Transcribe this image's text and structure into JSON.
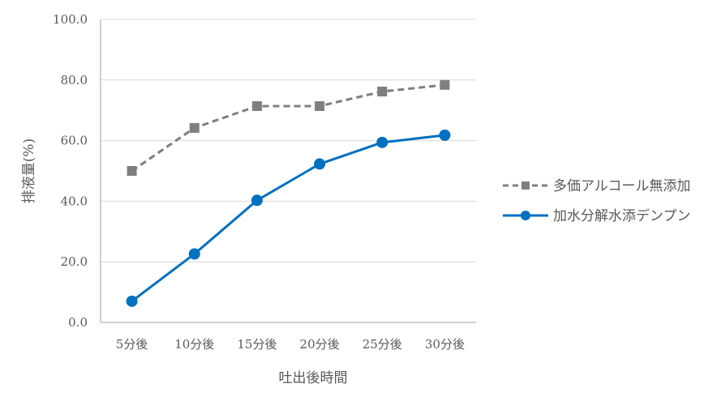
{
  "chart_data": {
    "type": "line",
    "title": "",
    "xlabel": "吐出後時間",
    "ylabel": "排液量(%)",
    "categories": [
      "5分後",
      "10分後",
      "15分後",
      "20分後",
      "25分後",
      "30分後"
    ],
    "ylim": [
      0,
      100
    ],
    "yticks": [
      "0.0",
      "20.0",
      "40.0",
      "60.0",
      "80.0",
      "100.0"
    ],
    "ytick_values": [
      0,
      20,
      40,
      60,
      80,
      100
    ],
    "grid": true,
    "legend_position": "right",
    "series": [
      {
        "name": "多価アルコール無添加",
        "values": [
          50.0,
          64.2,
          71.4,
          71.4,
          76.2,
          78.4
        ],
        "color": "#7f7f7f",
        "line_style": "dashed",
        "marker": "square"
      },
      {
        "name": "加水分解水添デンプン",
        "values": [
          7.0,
          22.6,
          40.3,
          52.3,
          59.4,
          61.8
        ],
        "color": "#0070c0",
        "line_style": "solid",
        "marker": "circle"
      }
    ]
  },
  "colors": {
    "grid": "#d9d9d9",
    "axis": "#bfbfbf",
    "text": "#595959"
  }
}
